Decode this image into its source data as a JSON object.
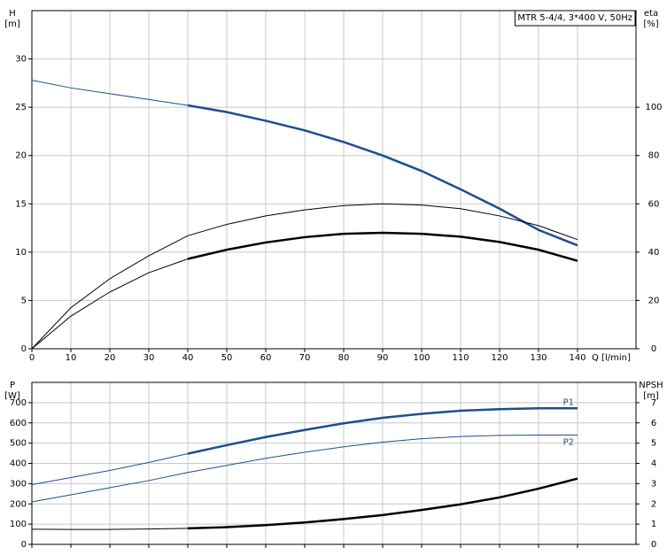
{
  "chart_data": [
    {
      "type": "line",
      "annotation": "MTR 5-4/4, 3*400 V, 50Hz",
      "y_label": "H",
      "y_unit": "[m]",
      "y2_label": "eta",
      "y2_unit": "[%]",
      "x_label": "Q [l/min]",
      "x": [
        0,
        10,
        20,
        30,
        40,
        50,
        60,
        70,
        80,
        90,
        100,
        110,
        120,
        130,
        140
      ],
      "xlim": [
        0,
        155
      ],
      "xticks": [
        0,
        10,
        20,
        30,
        40,
        50,
        60,
        70,
        80,
        90,
        100,
        110,
        120,
        130,
        140
      ],
      "ylim": [
        0,
        35
      ],
      "yticks": [
        0,
        5,
        10,
        15,
        20,
        25,
        30
      ],
      "y2lim": [
        0,
        140
      ],
      "y2ticks": [
        0,
        20,
        40,
        60,
        80,
        100
      ],
      "grid": true,
      "series": [
        {
          "color": "#1f4e8c",
          "bold_from": 40,
          "values": [
            27.8,
            27.0,
            26.4,
            25.8,
            25.2,
            24.5,
            23.6,
            22.6,
            21.4,
            20.0,
            18.4,
            16.5,
            14.5,
            12.3,
            10.7
          ]
        },
        {
          "color": "#000000",
          "axis": "y2",
          "values": [
            0,
            17,
            29,
            38.5,
            46.8,
            51.5,
            55,
            57.5,
            59.3,
            60,
            59.5,
            58,
            55,
            51,
            45.2
          ]
        },
        {
          "color": "#000000",
          "axis": "y2",
          "bold_from": 40,
          "values": [
            0,
            13.5,
            23.5,
            31.5,
            37.2,
            41,
            44,
            46.2,
            47.6,
            48,
            47.6,
            46.4,
            44.2,
            41,
            36.4
          ]
        }
      ]
    },
    {
      "type": "line",
      "y_label": "P",
      "y_unit": "[W]",
      "y2_label": "NPSH",
      "y2_unit": "[m]",
      "x": [
        0,
        10,
        20,
        30,
        40,
        50,
        60,
        70,
        80,
        90,
        100,
        110,
        120,
        130,
        140
      ],
      "xlim": [
        0,
        155
      ],
      "ylim": [
        0,
        800
      ],
      "yticks": [
        0,
        100,
        200,
        300,
        400,
        500,
        600,
        700
      ],
      "y2lim": [
        0,
        8
      ],
      "y2ticks": [
        0,
        1,
        2,
        3,
        4,
        5,
        6,
        7
      ],
      "grid": true,
      "series": [
        {
          "name": "P1",
          "color": "#1f4e8c",
          "bold_from": 40,
          "values": [
            295,
            330,
            365,
            405,
            448,
            490,
            530,
            565,
            598,
            625,
            645,
            660,
            668,
            672,
            672
          ]
        },
        {
          "name": "P2",
          "color": "#1f4e8c",
          "values": [
            210,
            245,
            280,
            315,
            355,
            390,
            425,
            455,
            482,
            505,
            522,
            533,
            538,
            540,
            540
          ]
        },
        {
          "color": "#000000",
          "axis": "y2",
          "bold_from": 40,
          "values": [
            0.75,
            0.74,
            0.74,
            0.76,
            0.79,
            0.85,
            0.95,
            1.08,
            1.25,
            1.45,
            1.7,
            1.98,
            2.32,
            2.75,
            3.25
          ]
        }
      ]
    }
  ]
}
